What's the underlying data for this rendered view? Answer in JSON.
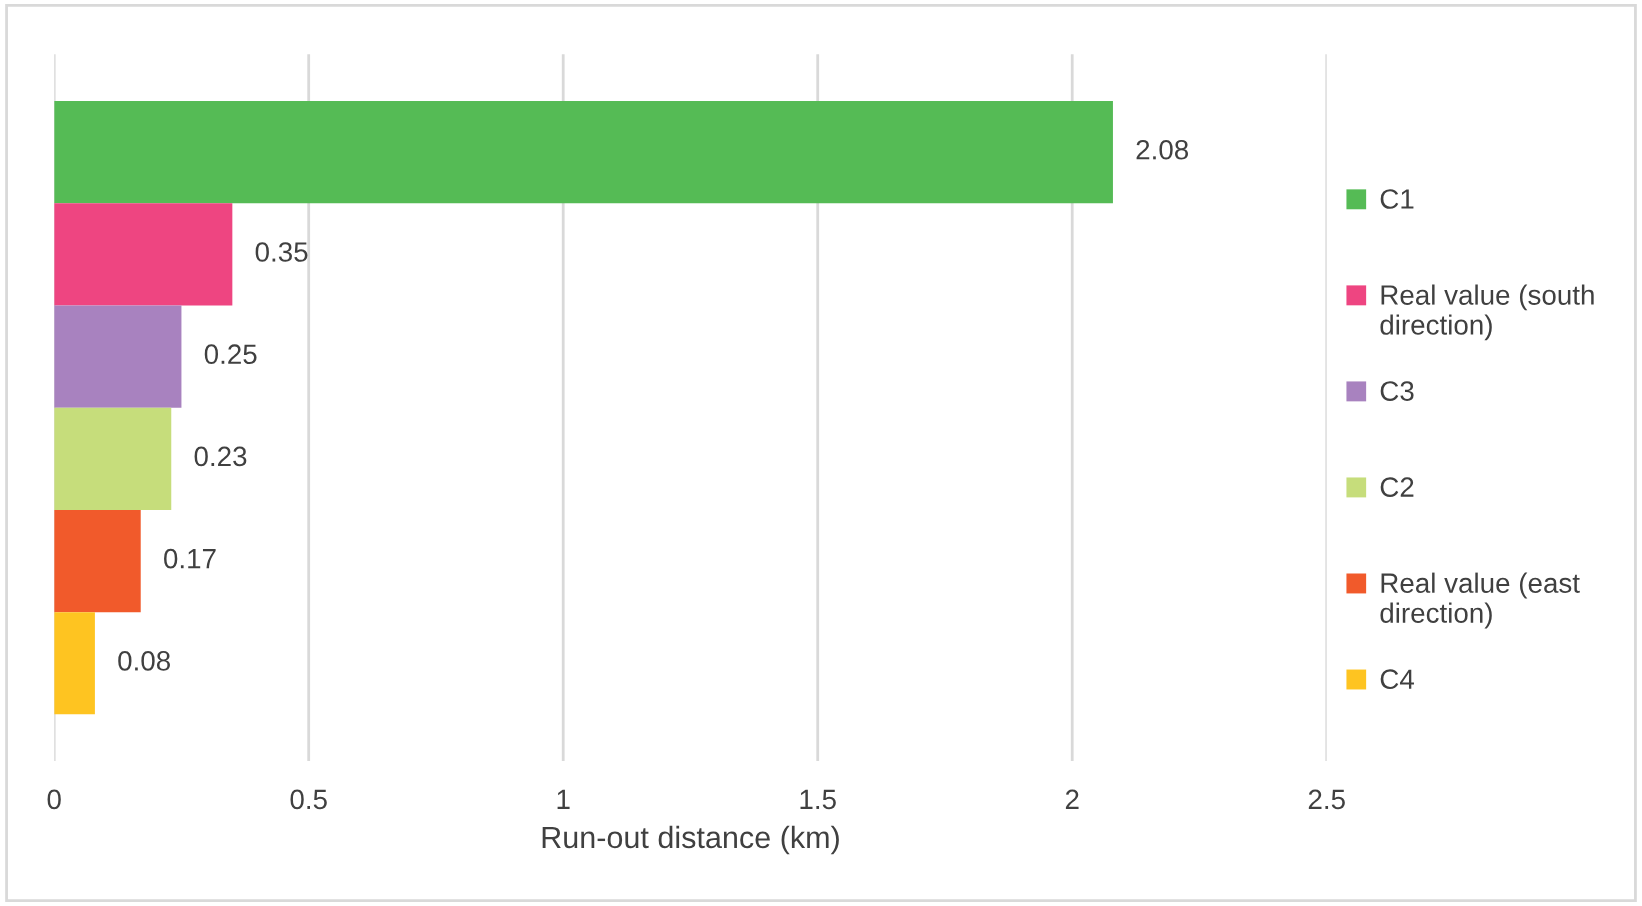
{
  "chart_data": {
    "type": "bar",
    "orientation": "horizontal",
    "categories": [
      null
    ],
    "series": [
      {
        "name": "C1",
        "color": "#55bb55",
        "values": [
          2.08
        ]
      },
      {
        "name": "Real value (south direction)",
        "color": "#ee4581",
        "values": [
          0.35
        ]
      },
      {
        "name": "C3",
        "color": "#a882bf",
        "values": [
          0.25
        ]
      },
      {
        "name": "C2",
        "color": "#c6dd7b",
        "values": [
          0.23
        ]
      },
      {
        "name": "Real value (east direction)",
        "color": "#f15a2b",
        "values": [
          0.17
        ]
      },
      {
        "name": "C4",
        "color": "#fec421",
        "values": [
          0.08
        ]
      }
    ],
    "xlabel": "Run-out distance (km)",
    "xlim": [
      0,
      2.5
    ],
    "xticks": [
      0,
      {
        "value": 0.5,
        "label": "0.5"
      },
      1,
      {
        "value": 1.5,
        "label": "1.5"
      },
      2,
      {
        "value": 2.5,
        "label": "2.5"
      }
    ],
    "tick_labels": "x",
    "grid": "x",
    "legend": "right",
    "data_labels": true
  }
}
